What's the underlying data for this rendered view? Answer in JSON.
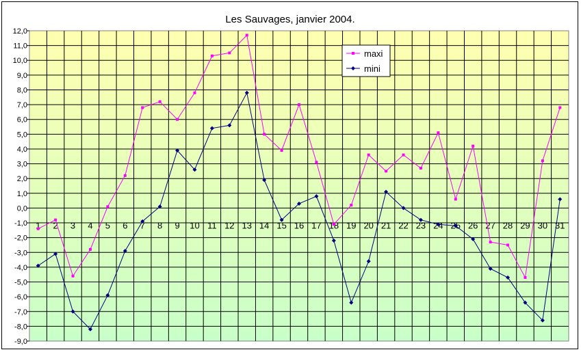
{
  "chart_data": {
    "type": "line",
    "title": "Les Sauvages, janvier 2004.",
    "xlabel": "",
    "ylabel": "",
    "categories": [
      "1",
      "2",
      "3",
      "4",
      "5",
      "6",
      "7",
      "8",
      "9",
      "10",
      "11",
      "12",
      "13",
      "14",
      "15",
      "16",
      "17",
      "18",
      "19",
      "20",
      "21",
      "22",
      "23",
      "24",
      "25",
      "26",
      "27",
      "28",
      "29",
      "30",
      "31"
    ],
    "ylim": [
      -9,
      12
    ],
    "ytick_step": 1,
    "ytick_labels": [
      "12,0",
      "11,0",
      "10,0",
      "9,0",
      "8,0",
      "7,0",
      "6,0",
      "5,0",
      "4,0",
      "3,0",
      "2,0",
      "1,0",
      "0,0",
      "-1,0",
      "-2,0",
      "-3,0",
      "-4,0",
      "-5,0",
      "-6,0",
      "-7,0",
      "-8,0",
      "-9,0"
    ],
    "grid": true,
    "legend_position": "top-right",
    "background_gradient": {
      "top": "#ffffb0",
      "bottom": "#c8ffc8"
    },
    "series": [
      {
        "name": "maxi",
        "color": "#ff00ff",
        "values": [
          -1.4,
          -0.8,
          -4.6,
          -2.8,
          0.1,
          2.2,
          6.8,
          7.2,
          6.0,
          7.8,
          10.3,
          10.5,
          11.7,
          5.0,
          3.9,
          7.0,
          3.1,
          -1.1,
          0.2,
          3.6,
          2.5,
          3.6,
          2.7,
          5.1,
          0.6,
          4.2,
          -2.3,
          -2.5,
          -4.7,
          3.2,
          6.8
        ]
      },
      {
        "name": "mini",
        "color": "#000080",
        "values": [
          -3.9,
          -3.1,
          -7.0,
          -8.2,
          -5.9,
          -2.9,
          -0.9,
          0.1,
          3.9,
          2.6,
          5.4,
          5.6,
          7.8,
          1.9,
          -0.8,
          0.3,
          0.8,
          -2.2,
          -6.4,
          -3.6,
          1.1,
          0.0,
          -0.8,
          -1.1,
          -1.2,
          -2.1,
          -4.1,
          -4.7,
          -6.4,
          -7.6,
          0.6
        ]
      }
    ]
  }
}
